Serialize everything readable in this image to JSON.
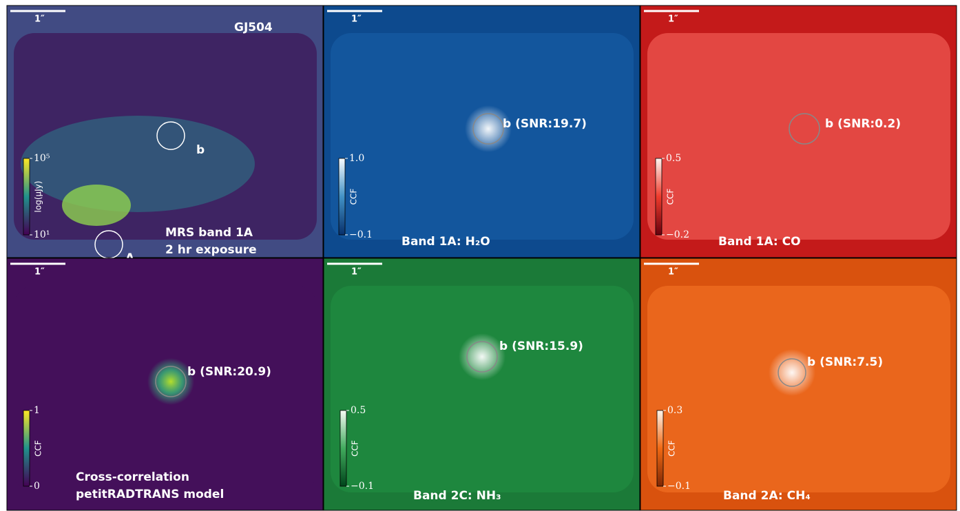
{
  "panels": [
    {
      "scale": "1″",
      "title": "GJ504",
      "markers": [
        "b",
        "A"
      ],
      "caption": [
        "MRS band 1A",
        "2 hr exposure"
      ],
      "colorbar": {
        "label": "log(μJy)",
        "ticks": [
          "10⁵",
          "10¹"
        ]
      }
    },
    {
      "scale": "1″",
      "markers": [
        "b (SNR:19.7)"
      ],
      "caption": [
        "Band 1A: H₂O"
      ],
      "colorbar": {
        "label": "CCF",
        "ticks": [
          "1.0",
          "−0.1"
        ]
      }
    },
    {
      "scale": "1″",
      "markers": [
        "b (SNR:0.2)"
      ],
      "caption": [
        "Band 1A: CO"
      ],
      "colorbar": {
        "label": "CCF",
        "ticks": [
          "0.5",
          "−0.2"
        ]
      }
    },
    {
      "scale": "1″",
      "markers": [
        "b (SNR:20.9)"
      ],
      "caption": [
        "Cross-correlation",
        "petitRADTRANS model"
      ],
      "colorbar": {
        "label": "CCF",
        "ticks": [
          "1",
          "0"
        ]
      }
    },
    {
      "scale": "1″",
      "markers": [
        "b (SNR:15.9)"
      ],
      "caption": [
        "Band 2C: NH₃"
      ],
      "colorbar": {
        "label": "CCF",
        "ticks": [
          "0.5",
          "−0.1"
        ]
      }
    },
    {
      "scale": "1″",
      "markers": [
        "b (SNR:7.5)"
      ],
      "caption": [
        "Band 2A: CH₄"
      ],
      "colorbar": {
        "label": "CCF",
        "ticks": [
          "0.3",
          "−0.1"
        ]
      }
    }
  ]
}
